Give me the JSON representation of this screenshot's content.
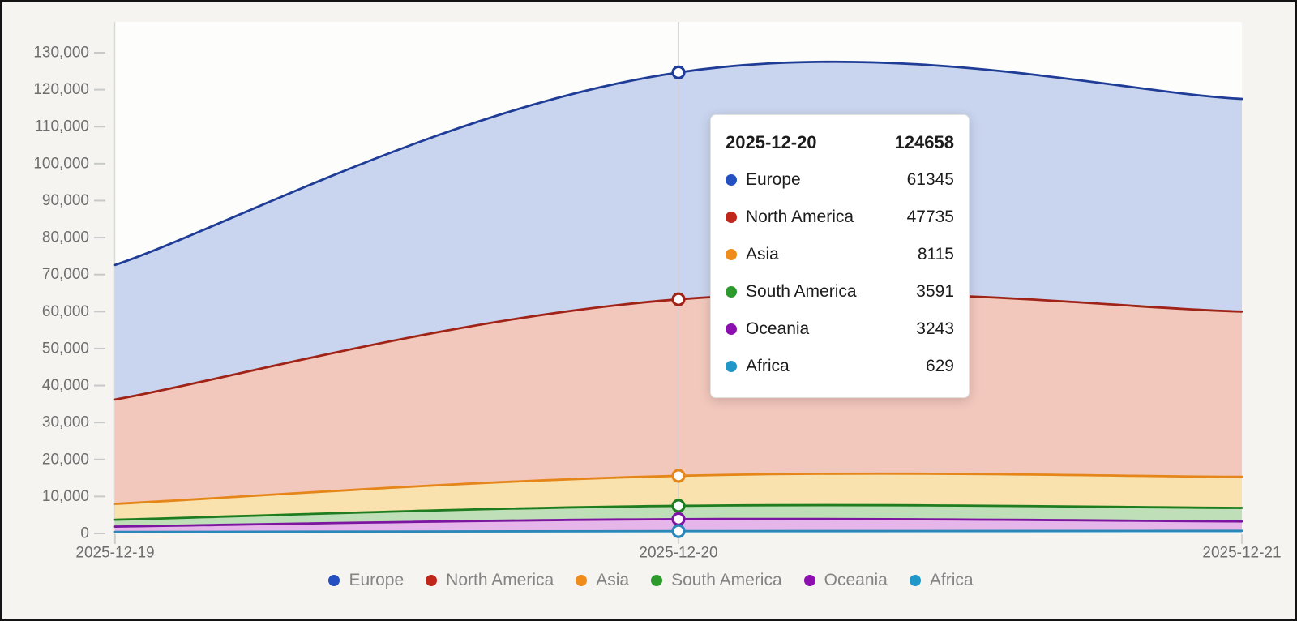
{
  "chart_data": {
    "type": "area",
    "stacked": true,
    "smooth": true,
    "title": "",
    "xlabel": "",
    "ylabel": "",
    "x": [
      "2025-12-19",
      "2025-12-20",
      "2025-12-21"
    ],
    "series": [
      {
        "name": "Europe",
        "values": [
          36400,
          61345,
          57500
        ],
        "line_color": "#1f3c96",
        "fill_color": "#c9d4ee",
        "dot_color": "#2450c2"
      },
      {
        "name": "North America",
        "values": [
          28200,
          47735,
          44700
        ],
        "line_color": "#a02317",
        "fill_color": "#f2c7bc",
        "dot_color": "#c1261b"
      },
      {
        "name": "Asia",
        "values": [
          4300,
          8115,
          8400
        ],
        "line_color": "#e5861a",
        "fill_color": "#f9e2ae",
        "dot_color": "#f08c1c"
      },
      {
        "name": "South America",
        "values": [
          1850,
          3591,
          3650
        ],
        "line_color": "#1f7d1f",
        "fill_color": "#bedfb8",
        "dot_color": "#2c9a2c"
      },
      {
        "name": "Oceania",
        "values": [
          1450,
          3243,
          2550
        ],
        "line_color": "#7c16a0",
        "fill_color": "#e6b5ea",
        "dot_color": "#8d0fb0"
      },
      {
        "name": "Africa",
        "values": [
          400,
          629,
          700
        ],
        "line_color": "#2a87b8",
        "fill_color": "#b5dbeb",
        "dot_color": "#1f97c9"
      }
    ],
    "stack_order_bottom_to_top": [
      "Africa",
      "Oceania",
      "South America",
      "Asia",
      "North America",
      "Europe"
    ],
    "ylim": [
      0,
      130000
    ],
    "y_tick_step": 10000,
    "y_tick_labels": [
      "0",
      "10,000",
      "20,000",
      "30,000",
      "40,000",
      "50,000",
      "60,000",
      "70,000",
      "80,000",
      "90,000",
      "100,000",
      "110,000",
      "120,000",
      "130,000"
    ],
    "x_tick_labels": [
      "2025-12-19",
      "2025-12-20",
      "2025-12-21"
    ],
    "grid": false,
    "legend_position": "bottom",
    "highlighted_x": "2025-12-20",
    "highlighted_index": 1
  },
  "tooltip": {
    "title": "2025-12-20",
    "total": "124658",
    "rows": [
      {
        "label": "Europe",
        "value": "61345",
        "color": "#2450c2"
      },
      {
        "label": "North America",
        "value": "47735",
        "color": "#c1261b"
      },
      {
        "label": "Asia",
        "value": "8115",
        "color": "#f08c1c"
      },
      {
        "label": "South America",
        "value": "3591",
        "color": "#2c9a2c"
      },
      {
        "label": "Oceania",
        "value": "3243",
        "color": "#8d0fb0"
      },
      {
        "label": "Africa",
        "value": "629",
        "color": "#1f97c9"
      }
    ]
  },
  "legend": {
    "items": [
      {
        "label": "Europe",
        "color": "#2450c2"
      },
      {
        "label": "North America",
        "color": "#c1261b"
      },
      {
        "label": "Asia",
        "color": "#f08c1c"
      },
      {
        "label": "South America",
        "color": "#2c9a2c"
      },
      {
        "label": "Oceania",
        "color": "#8d0fb0"
      },
      {
        "label": "Africa",
        "color": "#1f97c9"
      }
    ]
  },
  "colors": {
    "page_background": "#f5f4f1",
    "plot_background": "#fdfdfb",
    "frame_border": "#141414",
    "axis_text": "#6e6e6e",
    "axis_line": "#d9d9d9",
    "tick": "#c9c9c9",
    "crosshair": "#d2d2d2",
    "legend_text": "#848484",
    "tooltip_text": "#1c1c1c",
    "marker_fill": "#ffffff"
  }
}
